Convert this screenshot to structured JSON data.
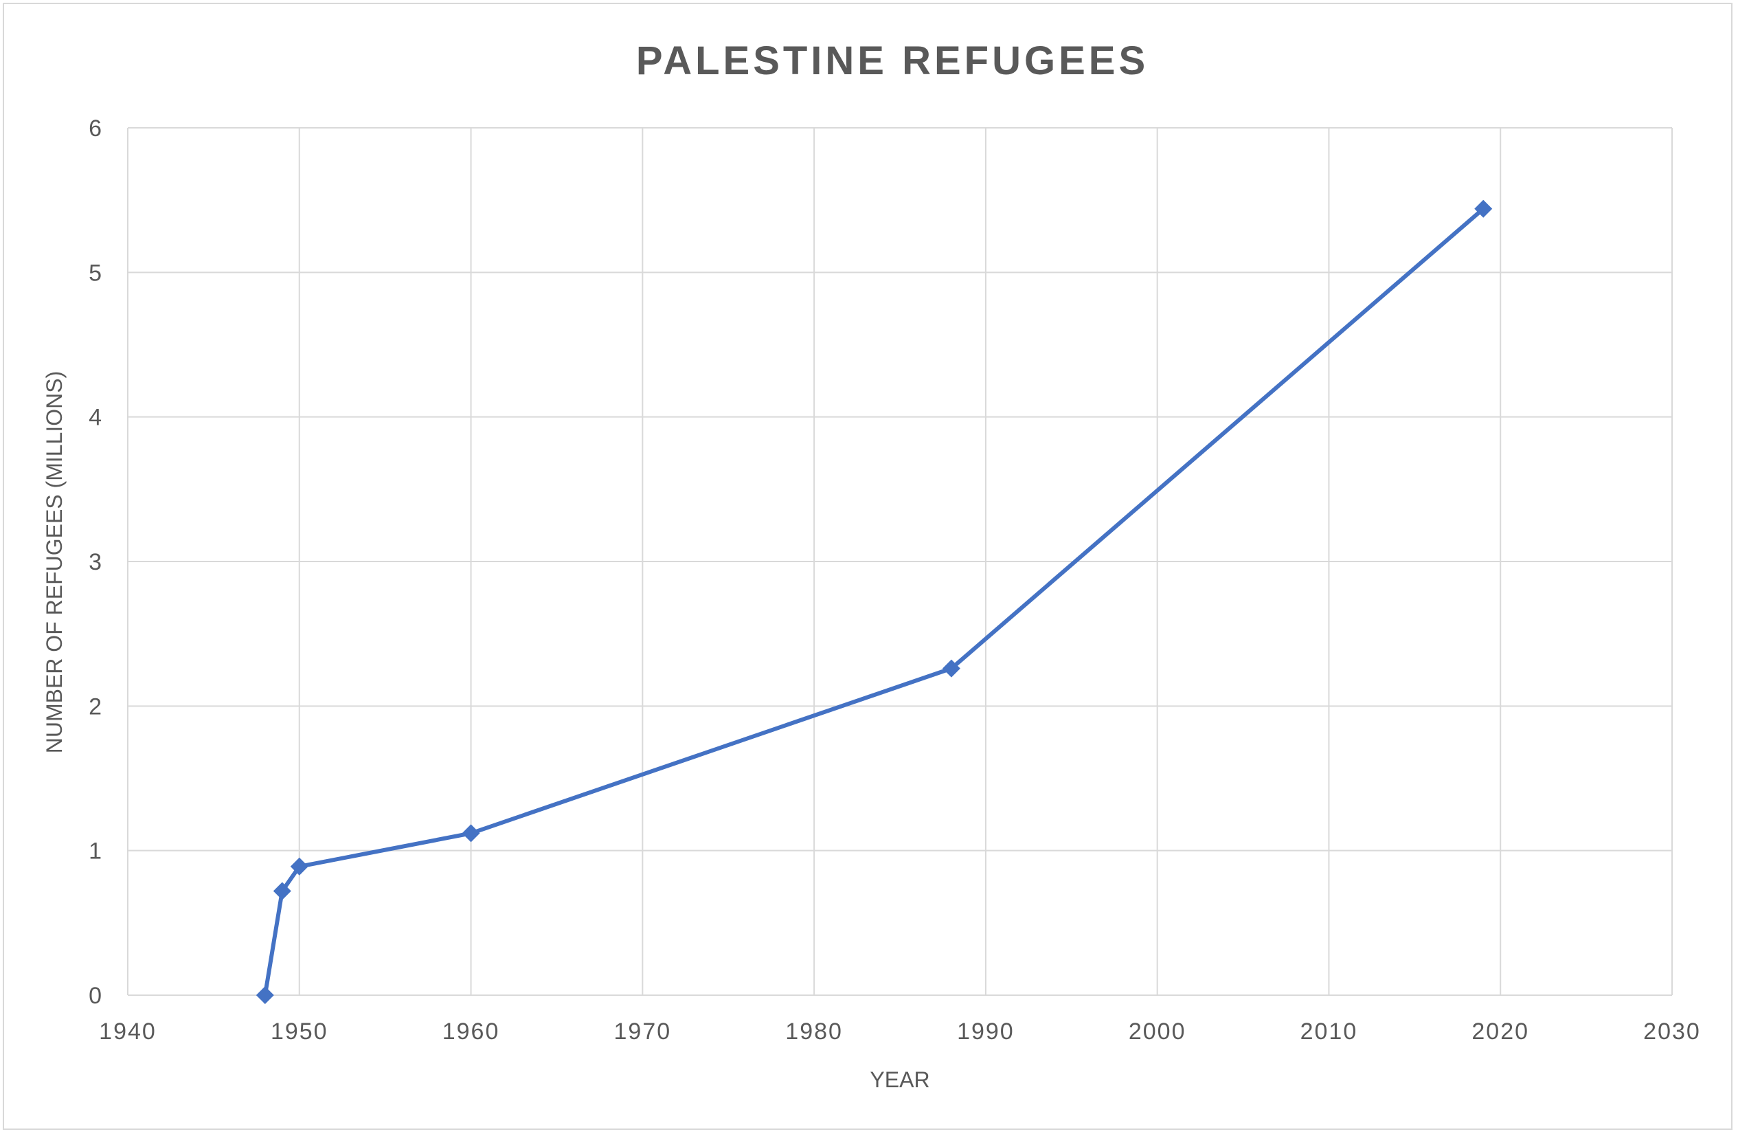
{
  "chart_data": {
    "type": "scatter",
    "title": "PALESTINE REFUGEES",
    "xlabel": "YEAR",
    "ylabel": "NUMBER OF REFUGEES (MILLIONS)",
    "xlim": [
      1940,
      2030
    ],
    "ylim": [
      0,
      6
    ],
    "x_ticks": [
      1940,
      1950,
      1960,
      1970,
      1980,
      1990,
      2000,
      2010,
      2020,
      2030
    ],
    "y_ticks": [
      0,
      1,
      2,
      3,
      4,
      5,
      6
    ],
    "grid": true,
    "legend": false,
    "series": [
      {
        "x": [
          1948,
          1949,
          1950,
          1960,
          1988,
          2019
        ],
        "y": [
          0,
          0.72,
          0.89,
          1.12,
          2.26,
          5.44
        ],
        "marker": "diamond",
        "line": "straight",
        "color": "#4472c4"
      }
    ]
  }
}
